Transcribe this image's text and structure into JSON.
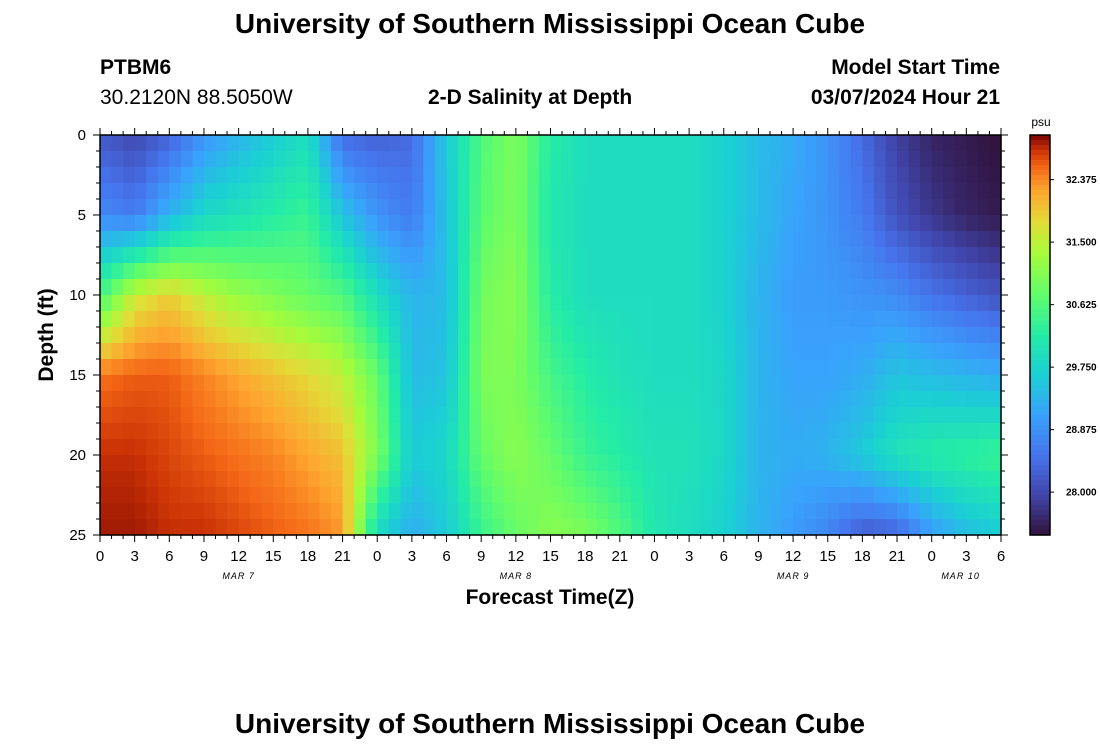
{
  "header": {
    "title": "University of Southern Mississippi Ocean Cube",
    "station_id": "PTBM6",
    "coords": "30.2120N  88.5050W",
    "plot_title": "2-D Salinity at Depth",
    "model_start_label": "Model Start Time",
    "model_start_value": "03/07/2024 Hour 21"
  },
  "footer": {
    "title": "University of Southern Mississippi Ocean Cube"
  },
  "chart_data": {
    "type": "heatmap",
    "title": "2-D Salinity at Depth",
    "xlabel": "Forecast Time(Z)",
    "ylabel": "Depth (ft)",
    "x_hours_range": [
      0,
      78
    ],
    "y_depth_range_ft": [
      0,
      25
    ],
    "y_inverted": true,
    "x_tick_labels": [
      "0",
      "3",
      "6",
      "9",
      "12",
      "15",
      "18",
      "21",
      "0",
      "3",
      "6",
      "9",
      "12",
      "15",
      "18",
      "21",
      "0",
      "3",
      "6",
      "9",
      "12",
      "15",
      "18",
      "21",
      "0",
      "3",
      "6"
    ],
    "y_tick_labels": [
      "0",
      "5",
      "10",
      "15",
      "20",
      "25"
    ],
    "day_labels": [
      {
        "label": "MAR 7",
        "hour": 12
      },
      {
        "label": "MAR 8",
        "hour": 36
      },
      {
        "label": "MAR 9",
        "hour": 60
      },
      {
        "label": "MAR 10",
        "hour": 74.5
      }
    ],
    "colorbar": {
      "unit": "psu",
      "range": [
        27.4,
        33.0
      ],
      "tick_values": [
        32.375,
        31.5,
        30.625,
        29.75,
        28.875,
        28.0
      ],
      "tick_labels": [
        "32.375",
        "31.500",
        "30.625",
        "29.750",
        "28.875",
        "28.000"
      ],
      "colormap": "turbo"
    },
    "depth_levels_ft": [
      0,
      5,
      10,
      15,
      20,
      25
    ],
    "salinity_profile_psu": [
      {
        "hour": 0,
        "values": [
          28.2,
          28.8,
          30.5,
          32.5,
          32.8,
          32.9
        ]
      },
      {
        "hour": 3,
        "values": [
          28.0,
          28.6,
          31.6,
          32.6,
          32.8,
          32.9
        ]
      },
      {
        "hour": 6,
        "values": [
          28.3,
          29.3,
          31.9,
          32.6,
          32.7,
          32.8
        ]
      },
      {
        "hour": 9,
        "values": [
          28.9,
          29.8,
          31.5,
          32.4,
          32.6,
          32.8
        ]
      },
      {
        "hour": 12,
        "values": [
          29.3,
          30.0,
          31.2,
          32.2,
          32.5,
          32.7
        ]
      },
      {
        "hour": 15,
        "values": [
          29.6,
          30.2,
          31.0,
          32.0,
          32.4,
          32.6
        ]
      },
      {
        "hour": 18,
        "values": [
          29.9,
          30.4,
          30.8,
          31.8,
          32.2,
          32.5
        ]
      },
      {
        "hour": 21,
        "values": [
          28.4,
          29.5,
          30.6,
          31.5,
          32.0,
          32.3
        ]
      },
      {
        "hour": 24,
        "values": [
          28.3,
          28.9,
          29.9,
          30.8,
          31.0,
          29.8
        ]
      },
      {
        "hour": 27,
        "values": [
          28.4,
          28.6,
          29.3,
          29.4,
          29.6,
          29.2
        ]
      },
      {
        "hour": 30,
        "values": [
          29.6,
          29.5,
          29.4,
          29.5,
          29.8,
          29.6
        ]
      },
      {
        "hour": 33,
        "values": [
          30.6,
          30.7,
          30.9,
          31.0,
          30.8,
          30.4
        ]
      },
      {
        "hour": 36,
        "values": [
          31.0,
          31.0,
          31.1,
          31.0,
          31.1,
          30.8
        ]
      },
      {
        "hour": 39,
        "values": [
          30.2,
          30.1,
          30.2,
          30.5,
          30.8,
          31.1
        ]
      },
      {
        "hour": 42,
        "values": [
          29.9,
          29.9,
          29.9,
          30.2,
          30.4,
          31.0
        ]
      },
      {
        "hour": 45,
        "values": [
          29.9,
          29.9,
          29.9,
          30.0,
          30.2,
          30.6
        ]
      },
      {
        "hour": 48,
        "values": [
          29.9,
          29.9,
          29.9,
          29.9,
          30.0,
          30.1
        ]
      },
      {
        "hour": 51,
        "values": [
          29.9,
          29.9,
          29.9,
          29.9,
          30.0,
          29.9
        ]
      },
      {
        "hour": 54,
        "values": [
          29.7,
          29.7,
          29.7,
          29.8,
          29.8,
          29.7
        ]
      },
      {
        "hour": 57,
        "values": [
          29.4,
          29.4,
          29.3,
          29.3,
          29.3,
          29.3
        ]
      },
      {
        "hour": 60,
        "values": [
          29.2,
          29.1,
          29.0,
          29.1,
          29.2,
          29.0
        ]
      },
      {
        "hour": 63,
        "values": [
          28.9,
          28.9,
          29.0,
          29.1,
          29.3,
          28.7
        ]
      },
      {
        "hour": 66,
        "values": [
          28.4,
          28.6,
          28.9,
          29.2,
          29.6,
          28.2
        ]
      },
      {
        "hour": 69,
        "values": [
          27.9,
          28.1,
          28.8,
          29.5,
          30.0,
          28.3
        ]
      },
      {
        "hour": 72,
        "values": [
          27.6,
          27.8,
          28.5,
          29.4,
          30.2,
          29.0
        ]
      },
      {
        "hour": 75,
        "values": [
          27.5,
          27.6,
          28.3,
          29.3,
          30.3,
          29.4
        ]
      },
      {
        "hour": 78,
        "values": [
          27.4,
          27.5,
          28.1,
          29.2,
          30.4,
          29.6
        ]
      }
    ]
  }
}
